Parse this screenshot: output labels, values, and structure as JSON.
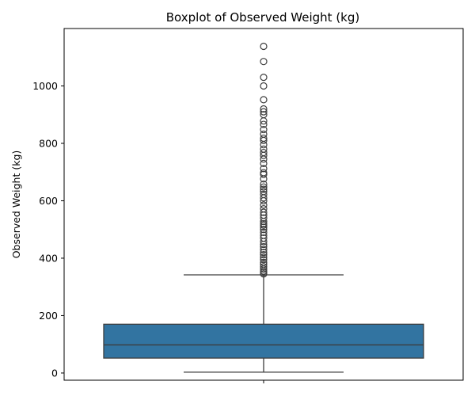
{
  "chart_data": {
    "type": "box",
    "title": "Boxplot of Observed Weight (kg)",
    "xlabel": "",
    "ylabel": "Observed Weight (kg)",
    "ylim": [
      -25,
      1200
    ],
    "yticks": [
      0,
      200,
      400,
      600,
      800,
      1000
    ],
    "grid": false,
    "box_color": "#3274a1",
    "edge_color": "#3d3d3d",
    "stats": {
      "whisker_low": 3,
      "q1": 52,
      "median": 98,
      "q3": 170,
      "whisker_high": 342
    },
    "outliers": [
      345,
      350,
      355,
      362,
      370,
      378,
      385,
      395,
      403,
      412,
      420,
      430,
      440,
      448,
      458,
      470,
      480,
      490,
      500,
      508,
      515,
      520,
      528,
      540,
      550,
      560,
      572,
      585,
      600,
      610,
      622,
      632,
      640,
      648,
      658,
      676,
      692,
      698,
      712,
      730,
      745,
      758,
      768,
      780,
      795,
      810,
      818,
      832,
      848,
      866,
      878,
      900,
      910,
      920,
      952,
      1000,
      1030,
      1085,
      1138
    ]
  }
}
